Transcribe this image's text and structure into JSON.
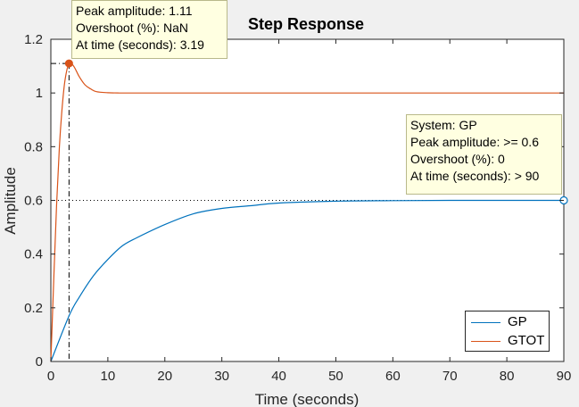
{
  "chart_data": {
    "type": "line",
    "title": "Step Response",
    "xlabel": "Time (seconds)",
    "ylabel": "Amplitude",
    "xlim": [
      0,
      90
    ],
    "ylim": [
      0,
      1.2
    ],
    "xticks": [
      "0",
      "10",
      "20",
      "30",
      "40",
      "50",
      "60",
      "70",
      "80",
      "90"
    ],
    "yticks": [
      "0",
      "0.2",
      "0.4",
      "0.6",
      "0.8",
      "1",
      "1.2"
    ],
    "series": [
      {
        "name": "GP",
        "color": "#0072bd",
        "x": [
          0,
          3.19,
          5,
          7.5,
          10,
          12.5,
          15,
          20,
          25,
          30,
          35,
          40,
          50,
          60,
          70,
          80,
          90
        ],
        "values": [
          0,
          0.17,
          0.24,
          0.32,
          0.38,
          0.43,
          0.46,
          0.51,
          0.55,
          0.57,
          0.58,
          0.59,
          0.597,
          0.599,
          0.6,
          0.6,
          0.6
        ]
      },
      {
        "name": "GTOT",
        "color": "#d95319",
        "x": [
          0,
          0.5,
          1,
          1.5,
          2,
          2.5,
          3.19,
          4,
          5,
          6,
          7,
          8,
          10,
          12,
          15,
          20,
          30,
          50,
          70,
          90
        ],
        "values": [
          0,
          0.3,
          0.58,
          0.8,
          0.95,
          1.05,
          1.11,
          1.1,
          1.06,
          1.03,
          1.015,
          1.005,
          1.001,
          1.0,
          1.0,
          1.0,
          1.0,
          1.0,
          1.0,
          1.0
        ]
      }
    ],
    "legend": [
      "GP",
      "GTOT"
    ],
    "legend_position": "bottom-right",
    "annotations": [
      {
        "target": "GTOT",
        "marker": {
          "x": 3.19,
          "y": 1.11
        },
        "lines": [
          "Peak amplitude: 1.11",
          "Overshoot (%): NaN",
          "At time (seconds): 3.19"
        ]
      },
      {
        "target": "GP",
        "marker": {
          "x": 90,
          "y": 0.6
        },
        "lines": [
          "System: GP",
          "Peak amplitude: >= 0.6",
          "Overshoot (%): 0",
          "At time (seconds): > 90"
        ]
      }
    ],
    "grid": false
  }
}
